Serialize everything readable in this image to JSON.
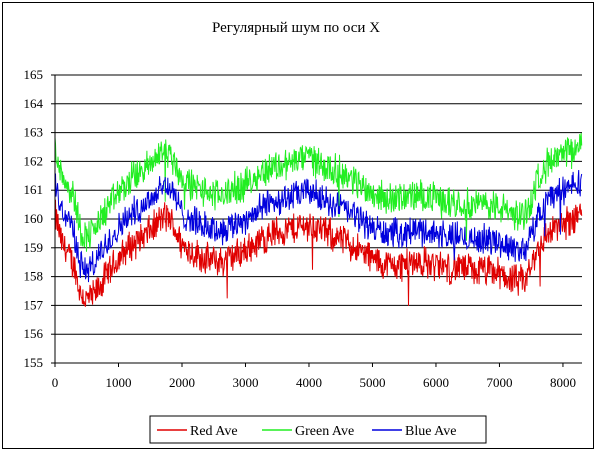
{
  "chart_data": {
    "type": "line",
    "title": "Регулярный шум по оси X",
    "xlabel": "",
    "ylabel": "",
    "xlim": [
      0,
      8300
    ],
    "ylim": [
      155,
      165
    ],
    "x_ticks": [
      0,
      1000,
      2000,
      3000,
      4000,
      5000,
      6000,
      7000,
      8000
    ],
    "y_ticks": [
      155,
      156,
      157,
      158,
      159,
      160,
      161,
      162,
      163,
      164,
      165
    ],
    "grid": "horizontal",
    "legend_position": "bottom",
    "series": [
      {
        "name": "Red Ave",
        "color": "#e00000",
        "noise": 0.55,
        "x": [
          0,
          100,
          200,
          300,
          400,
          500,
          600,
          700,
          800,
          900,
          1000,
          1200,
          1400,
          1600,
          1700,
          1800,
          1900,
          2000,
          2200,
          2400,
          2600,
          2800,
          3000,
          3200,
          3400,
          3600,
          3800,
          4000,
          4200,
          4400,
          4600,
          4800,
          5000,
          5200,
          5400,
          5600,
          5800,
          6000,
          6200,
          6400,
          6600,
          6800,
          7000,
          7200,
          7300,
          7400,
          7500,
          7600,
          7700,
          7800,
          8000,
          8200,
          8300
        ],
        "y": [
          160.2,
          159.2,
          158.8,
          158.4,
          157.4,
          157.2,
          157.3,
          157.6,
          158.0,
          158.3,
          158.6,
          159.1,
          159.4,
          159.8,
          160.1,
          160.0,
          159.6,
          159.1,
          158.8,
          158.6,
          158.5,
          158.7,
          158.9,
          159.2,
          159.5,
          159.6,
          159.7,
          159.8,
          159.6,
          159.4,
          159.2,
          158.9,
          158.6,
          158.4,
          158.4,
          158.5,
          158.5,
          158.4,
          158.3,
          158.3,
          158.2,
          158.2,
          158.1,
          157.9,
          157.8,
          157.9,
          158.3,
          159.0,
          159.3,
          159.6,
          159.8,
          160.1,
          160.3
        ]
      },
      {
        "name": "Green Ave",
        "color": "#22ee22",
        "noise": 0.55,
        "x": [
          0,
          100,
          200,
          300,
          400,
          500,
          600,
          700,
          800,
          900,
          1000,
          1200,
          1400,
          1600,
          1700,
          1800,
          1900,
          2000,
          2200,
          2400,
          2600,
          2800,
          3000,
          3200,
          3400,
          3600,
          3800,
          4000,
          4200,
          4400,
          4600,
          4800,
          5000,
          5200,
          5400,
          5600,
          5800,
          6000,
          6200,
          6400,
          6600,
          6800,
          7000,
          7200,
          7300,
          7400,
          7500,
          7600,
          7700,
          7800,
          8000,
          8200,
          8300
        ],
        "y": [
          162.5,
          161.6,
          161.2,
          160.8,
          159.6,
          159.4,
          159.6,
          159.9,
          160.3,
          160.6,
          160.9,
          161.4,
          161.7,
          162.1,
          162.4,
          162.3,
          161.9,
          161.4,
          161.1,
          160.9,
          160.8,
          161.0,
          161.2,
          161.5,
          161.8,
          161.9,
          162.0,
          162.2,
          161.9,
          161.7,
          161.5,
          161.2,
          160.9,
          160.7,
          160.7,
          160.8,
          160.8,
          160.7,
          160.6,
          160.6,
          160.5,
          160.5,
          160.4,
          160.2,
          160.1,
          160.2,
          160.6,
          161.4,
          161.8,
          162.0,
          162.2,
          162.4,
          162.6
        ]
      },
      {
        "name": "Blue Ave",
        "color": "#0000dd",
        "noise": 0.5,
        "x": [
          0,
          100,
          200,
          300,
          400,
          500,
          600,
          700,
          800,
          900,
          1000,
          1200,
          1400,
          1600,
          1700,
          1800,
          1900,
          2000,
          2200,
          2400,
          2600,
          2800,
          3000,
          3200,
          3400,
          3600,
          3800,
          4000,
          4200,
          4400,
          4600,
          4800,
          5000,
          5200,
          5400,
          5600,
          5800,
          6000,
          6200,
          6400,
          6600,
          6800,
          7000,
          7200,
          7300,
          7400,
          7500,
          7600,
          7700,
          7800,
          8000,
          8200,
          8300
        ],
        "y": [
          161.2,
          160.4,
          160.0,
          159.6,
          158.4,
          158.2,
          158.4,
          158.7,
          159.1,
          159.4,
          159.7,
          160.2,
          160.5,
          160.9,
          161.2,
          161.1,
          160.7,
          160.2,
          159.9,
          159.7,
          159.6,
          159.8,
          160.0,
          160.3,
          160.6,
          160.7,
          160.8,
          161.0,
          160.7,
          160.5,
          160.3,
          160.0,
          159.7,
          159.5,
          159.5,
          159.6,
          159.6,
          159.5,
          159.4,
          159.4,
          159.3,
          159.3,
          159.2,
          159.0,
          158.9,
          159.0,
          159.4,
          160.1,
          160.5,
          160.8,
          161.0,
          161.2,
          161.4
        ]
      }
    ]
  }
}
